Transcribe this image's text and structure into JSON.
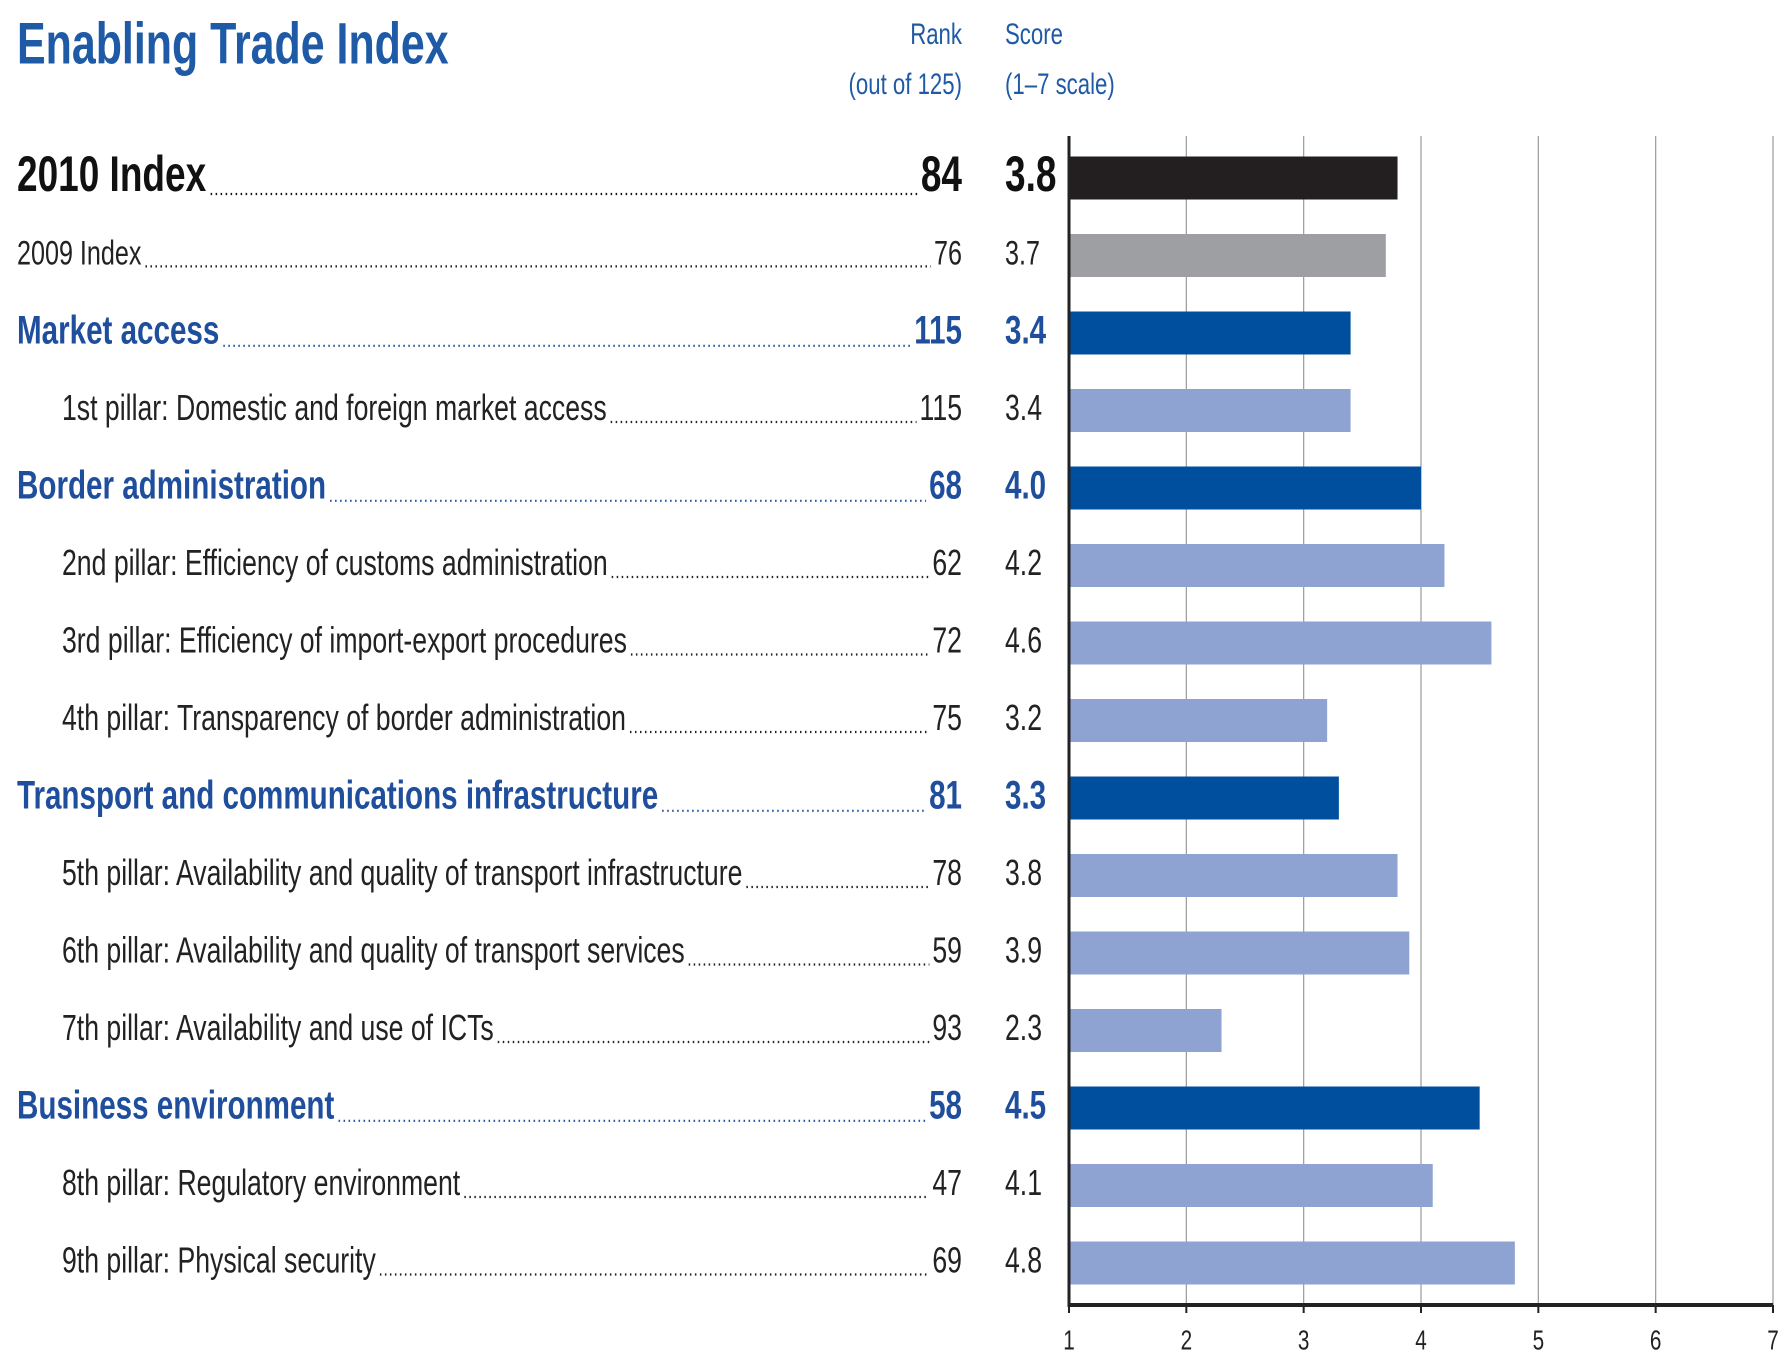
{
  "chart_data": {
    "type": "bar",
    "orientation": "horizontal",
    "title": "Enabling Trade Index",
    "rank_header": [
      "Rank",
      "(out of 125)"
    ],
    "score_header": [
      "Score",
      "(1–7 scale)"
    ],
    "categories": [
      "2010 Index",
      "2009 Index",
      "Market access",
      "1st pillar: Domestic and foreign market access",
      "Border administration",
      "2nd pillar: Efficiency of customs administration",
      "3rd pillar: Efficiency of import-export procedures",
      "4th pillar: Transparency of border administration",
      "Transport and communications infrastructure",
      "5th pillar: Availability and quality of transport infrastructure",
      "6th pillar: Availability and quality of transport services",
      "7th pillar: Availability and use of ICTs",
      "Business environment",
      "8th pillar: Regulatory environment",
      "9th pillar: Physical security"
    ],
    "ranks": [
      84,
      76,
      115,
      115,
      68,
      62,
      72,
      75,
      81,
      78,
      59,
      93,
      58,
      47,
      69
    ],
    "values": [
      3.8,
      3.7,
      3.4,
      3.4,
      4.0,
      4.2,
      4.6,
      3.2,
      3.3,
      3.8,
      3.9,
      2.3,
      4.5,
      4.1,
      4.8
    ],
    "value_labels": [
      "3.8",
      "3.7",
      "3.4",
      "3.4",
      "4.0",
      "4.2",
      "4.6",
      "3.2",
      "3.3",
      "3.8",
      "3.9",
      "2.3",
      "4.5",
      "4.1",
      "4.8"
    ],
    "colors": [
      "#231f20",
      "#9d9fa2",
      "#004f9f",
      "#8fa3d3",
      "#004f9f",
      "#8fa3d3",
      "#8fa3d3",
      "#8fa3d3",
      "#004f9f",
      "#8fa3d3",
      "#8fa3d3",
      "#8fa3d3",
      "#004f9f",
      "#8fa3d3",
      "#8fa3d3"
    ],
    "xlim": [
      1,
      7
    ],
    "xticks": [
      1,
      2,
      3,
      4,
      5,
      6,
      7
    ],
    "grid": true
  }
}
